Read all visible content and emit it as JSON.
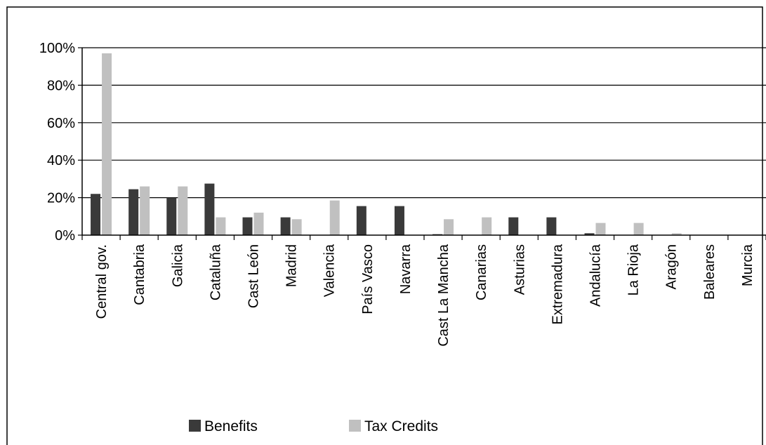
{
  "chart_data": {
    "type": "bar",
    "categories": [
      "Central gov.",
      "Cantabria",
      "Galicia",
      "Cataluña",
      "Cast León",
      "Madrid",
      "Valencia",
      "País Vasco",
      "Navarra",
      "Cast La Mancha",
      "Canarias",
      "Asturias",
      "Extremadura",
      "Andalucía",
      "La Rioja",
      "Aragón",
      "Baleares",
      "Murcia"
    ],
    "series": [
      {
        "name": "Benefits",
        "color": "#3a3a3a",
        "values": [
          22,
          24.5,
          20,
          27.5,
          9.5,
          9.5,
          0,
          15.5,
          15.5,
          0.5,
          0,
          9.5,
          9.5,
          1,
          0,
          0,
          0,
          0
        ]
      },
      {
        "name": "Tax Credits",
        "color": "#c0c0c0",
        "values": [
          97,
          26,
          26,
          9.5,
          12,
          8.5,
          18.5,
          0,
          0,
          8.5,
          9.5,
          0,
          0,
          6.5,
          6.5,
          1,
          0,
          0
        ]
      }
    ],
    "yticks": [
      "0%",
      "20%",
      "40%",
      "60%",
      "80%",
      "100%"
    ],
    "ylim": [
      0,
      100
    ],
    "grid": true,
    "legend": "bottom",
    "title": "",
    "xlabel": "",
    "ylabel": ""
  }
}
